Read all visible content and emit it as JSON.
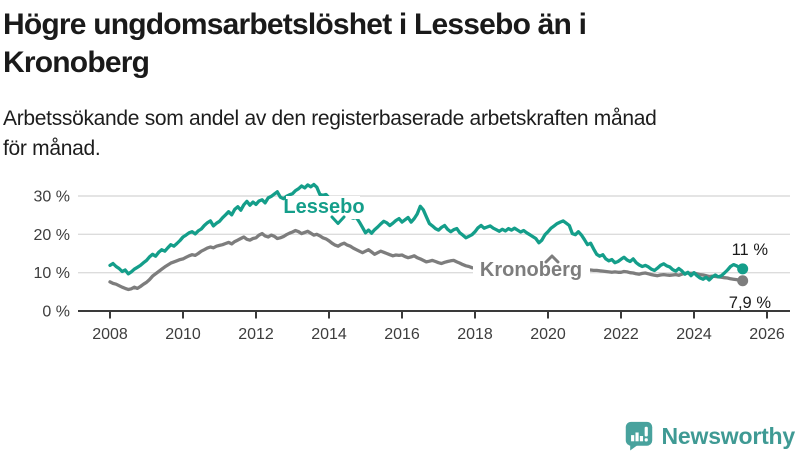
{
  "title": "Högre ungdomsarbetslöshet i Lessebo än i\nKronoberg",
  "subtitle": "Arbetssökande som andel av den registerbaserade arbetskraften månad\nför månad.",
  "brand": {
    "name": "Newsworthy"
  },
  "colors": {
    "lessebo": "#149E8A",
    "kronoberg": "#7D7D7D",
    "grid": "#DCDCDC",
    "axis": "#3A3A3A",
    "tick_text": "#3D3D3D",
    "end_label_text": "#1A1A1A",
    "logo_teal": "#48A29D",
    "wordmark": "#3F9A94"
  },
  "chart_data": {
    "type": "line",
    "x_unit": "monthly",
    "x_range_start": "2008-01",
    "x_range_end": "2025-05",
    "grid": true,
    "ylim": [
      0,
      35
    ],
    "y_ticks": [
      0,
      10,
      20,
      30
    ],
    "y_tick_labels": [
      "0 %",
      "10 %",
      "20 %",
      "30 %"
    ],
    "x_tick_labels": [
      "2008",
      "2010",
      "2012",
      "2014",
      "2016",
      "2018",
      "2020",
      "2022",
      "2024",
      "2026"
    ],
    "series": [
      {
        "name": "Lessebo",
        "color": "#149E8A",
        "end_label": "11 %",
        "end_value": 11.0,
        "values": [
          11.9,
          12.4,
          11.6,
          11.1,
          10.3,
          10.7,
          9.7,
          10.2,
          10.9,
          11.4,
          11.9,
          12.6,
          13.2,
          14.1,
          14.8,
          14.3,
          15.3,
          16.0,
          15.6,
          16.5,
          17.3,
          16.9,
          17.6,
          18.4,
          19.3,
          19.8,
          20.4,
          20.7,
          20.1,
          20.9,
          21.4,
          22.3,
          23.0,
          23.5,
          22.2,
          22.9,
          23.4,
          24.3,
          25.1,
          25.9,
          25.1,
          26.5,
          27.2,
          26.3,
          27.7,
          28.6,
          27.6,
          28.4,
          27.8,
          28.7,
          29.0,
          28.2,
          29.5,
          29.9,
          30.5,
          31.1,
          29.7,
          29.3,
          29.9,
          30.3,
          30.6,
          31.4,
          31.9,
          32.6,
          32.1,
          32.9,
          32.4,
          33.0,
          32.3,
          30.4,
          30.2,
          30.4,
          29.5,
          28.6,
          27.8,
          27.0,
          26.3,
          25.6,
          25.0,
          24.5,
          24.2,
          24.4,
          23.2,
          21.8,
          20.4,
          21.1,
          20.3,
          21.2,
          21.9,
          22.7,
          23.4,
          23.0,
          22.3,
          22.9,
          23.6,
          24.1,
          23.2,
          23.8,
          24.4,
          23.2,
          24.1,
          25.3,
          27.3,
          26.4,
          24.6,
          22.8,
          22.2,
          21.5,
          21.1,
          21.8,
          22.3,
          21.3,
          20.7,
          21.2,
          21.5,
          20.4,
          19.8,
          19.1,
          19.5,
          19.9,
          20.7,
          21.7,
          22.3,
          21.6,
          21.9,
          22.2,
          21.6,
          21.2,
          20.8,
          21.3,
          20.9,
          21.5,
          21.1,
          21.6,
          21.1,
          20.6,
          21.0,
          20.4,
          19.9,
          19.4,
          18.9,
          17.8,
          18.5,
          19.9,
          20.7,
          21.6,
          22.2,
          22.8,
          23.2,
          23.5,
          22.9,
          22.3,
          20.2,
          19.9,
          20.7,
          19.8,
          18.6,
          17.3,
          17.7,
          16.2,
          14.8,
          14.3,
          14.7,
          13.6,
          13.1,
          13.4,
          12.6,
          12.9,
          13.5,
          14.0,
          13.3,
          12.9,
          13.6,
          12.6,
          12.0,
          11.6,
          11.9,
          11.5,
          10.9,
          10.6,
          11.2,
          11.9,
          12.3,
          11.8,
          11.5,
          10.8,
          10.4,
          11.1,
          10.5,
          9.6,
          10.1,
          9.2,
          10.0,
          9.2,
          8.6,
          8.3,
          8.8,
          8.1,
          8.9,
          9.4,
          8.9,
          9.2,
          9.9,
          10.7,
          11.6,
          12.1,
          11.8,
          11.3,
          11.0
        ]
      },
      {
        "name": "Kronoberg",
        "color": "#7D7D7D",
        "end_label": "7,9 %",
        "end_value": 7.9,
        "values": [
          7.6,
          7.2,
          7.0,
          6.6,
          6.2,
          5.9,
          5.6,
          5.8,
          6.2,
          5.9,
          6.4,
          7.0,
          7.5,
          8.2,
          9.1,
          9.7,
          10.3,
          10.9,
          11.5,
          12.0,
          12.5,
          12.8,
          13.1,
          13.4,
          13.6,
          14.0,
          14.4,
          14.7,
          14.5,
          15.0,
          15.6,
          16.0,
          16.4,
          16.7,
          16.5,
          16.9,
          17.1,
          17.3,
          17.6,
          17.9,
          17.5,
          18.1,
          18.5,
          18.9,
          19.3,
          18.7,
          18.5,
          18.9,
          19.1,
          19.8,
          20.2,
          19.6,
          19.3,
          19.8,
          19.5,
          18.9,
          19.1,
          19.4,
          19.9,
          20.3,
          20.6,
          21.0,
          20.7,
          20.2,
          20.5,
          20.8,
          20.3,
          19.8,
          20.0,
          19.6,
          19.1,
          18.8,
          18.3,
          17.7,
          17.2,
          16.9,
          17.4,
          17.7,
          17.2,
          16.9,
          16.4,
          16.0,
          15.6,
          15.2,
          15.6,
          16.0,
          15.4,
          14.8,
          15.2,
          15.6,
          15.3,
          15.0,
          14.7,
          14.4,
          14.6,
          14.5,
          14.6,
          14.2,
          13.9,
          14.1,
          14.4,
          13.9,
          13.6,
          13.2,
          12.8,
          13.0,
          13.2,
          12.9,
          12.6,
          12.4,
          12.7,
          12.9,
          13.1,
          13.2,
          12.8,
          12.5,
          12.1,
          11.8,
          11.6,
          11.3,
          11.2,
          11.0,
          10.8,
          10.7,
          10.6,
          10.5,
          10.6,
          10.5,
          10.4,
          10.5,
          10.6,
          10.5,
          10.6,
          10.5,
          10.4,
          10.5,
          10.4,
          10.3,
          10.4,
          10.3,
          10.4,
          10.5,
          10.6,
          10.8,
          11.0,
          11.3,
          11.5,
          11.6,
          11.5,
          11.4,
          11.3,
          11.2,
          11.1,
          11.0,
          10.9,
          10.8,
          10.8,
          10.7,
          10.7,
          10.6,
          10.6,
          10.5,
          10.4,
          10.3,
          10.2,
          10.1,
          10.2,
          10.1,
          10.1,
          10.3,
          10.2,
          10.0,
          9.9,
          9.7,
          9.6,
          9.8,
          9.9,
          9.7,
          9.5,
          9.3,
          9.2,
          9.4,
          9.5,
          9.4,
          9.3,
          9.4,
          9.5,
          9.3,
          9.6,
          9.8,
          9.9,
          9.8,
          9.9,
          9.7,
          9.5,
          9.4,
          9.2,
          9.0,
          9.1,
          9.0,
          8.9,
          8.8,
          8.7,
          8.6,
          8.4,
          8.3,
          8.2,
          8.0,
          7.9
        ]
      }
    ]
  }
}
